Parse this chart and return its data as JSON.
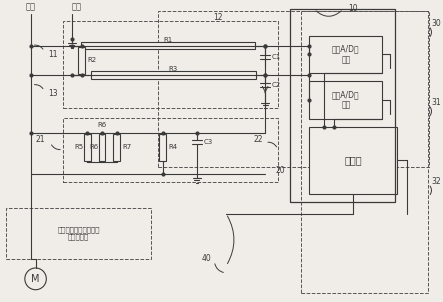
{
  "bg": "#f0ede8",
  "lc": "#3a3a3a",
  "dc": "#555555",
  "fw": 4.43,
  "fh": 3.02,
  "dpi": 100,
  "labels": {
    "huoxian": "火线",
    "lingxian": "零线",
    "R1": "R1",
    "R2": "R2",
    "R3": "R3",
    "R4": "R4",
    "R5": "R5",
    "R6": "R6",
    "R7": "R7",
    "C1": "C1",
    "C2": "C2",
    "C3": "C3",
    "adc1": "第一A/D转\n换器",
    "adc2": "第二A/D转\n换器",
    "mcu": "单片机",
    "power": "功率开关芯片和半导体\n型场效应管",
    "motor": "M",
    "n10": "10",
    "n11": "11",
    "n12": "12",
    "n13": "13",
    "n20": "20",
    "n21": "21",
    "n22": "22",
    "n30": "30",
    "n31": "31",
    "n32": "32",
    "n40": "40"
  }
}
